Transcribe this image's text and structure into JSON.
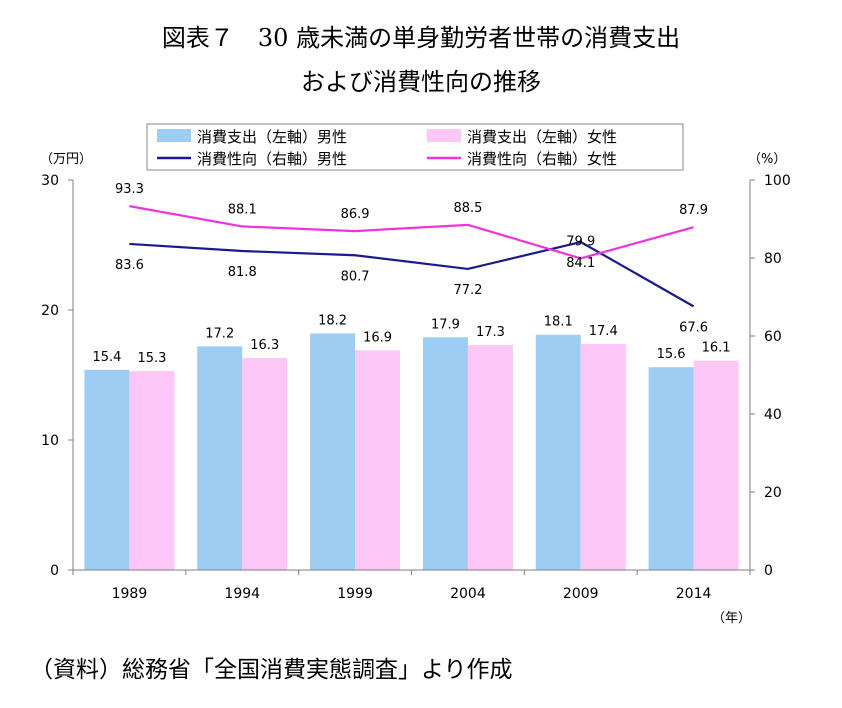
{
  "title_line1": "図表７　30 歳未満の単身勤労者世帯の消費支出",
  "title_line2": "および消費性向の推移",
  "source": "（資料）総務省「全国消費実態調査」より作成",
  "chart_data": {
    "type": "bar+line",
    "categories": [
      "1989",
      "1994",
      "1999",
      "2004",
      "2009",
      "2014"
    ],
    "left_axis": {
      "unit": "（万円）",
      "min": 0,
      "max": 30,
      "ticks": [
        0,
        10,
        20,
        30
      ]
    },
    "right_axis": {
      "unit": "（%）",
      "min": 0,
      "max": 100,
      "ticks": [
        0,
        20,
        40,
        60,
        80,
        100
      ]
    },
    "x_unit": "（年）",
    "grid": false,
    "legend_position": "top",
    "bars": [
      {
        "name": "消費支出（左軸）男性",
        "color": "#9ecdf4",
        "values": [
          15.4,
          17.2,
          18.2,
          17.9,
          18.1,
          15.6
        ]
      },
      {
        "name": "消費支出（左軸）女性",
        "color": "#fcc6f6",
        "values": [
          15.3,
          16.3,
          16.9,
          17.3,
          17.4,
          16.1
        ]
      }
    ],
    "lines": [
      {
        "name": "消費性向（右軸）男性",
        "color": "#1a1a8c",
        "values": [
          83.6,
          81.8,
          80.7,
          77.2,
          84.1,
          67.6
        ],
        "label_position": "below"
      },
      {
        "name": "消費性向（右軸）女性",
        "color": "#ee33dd",
        "values": [
          93.3,
          88.1,
          86.9,
          88.5,
          79.9,
          87.9
        ],
        "label_position": "above"
      }
    ]
  }
}
